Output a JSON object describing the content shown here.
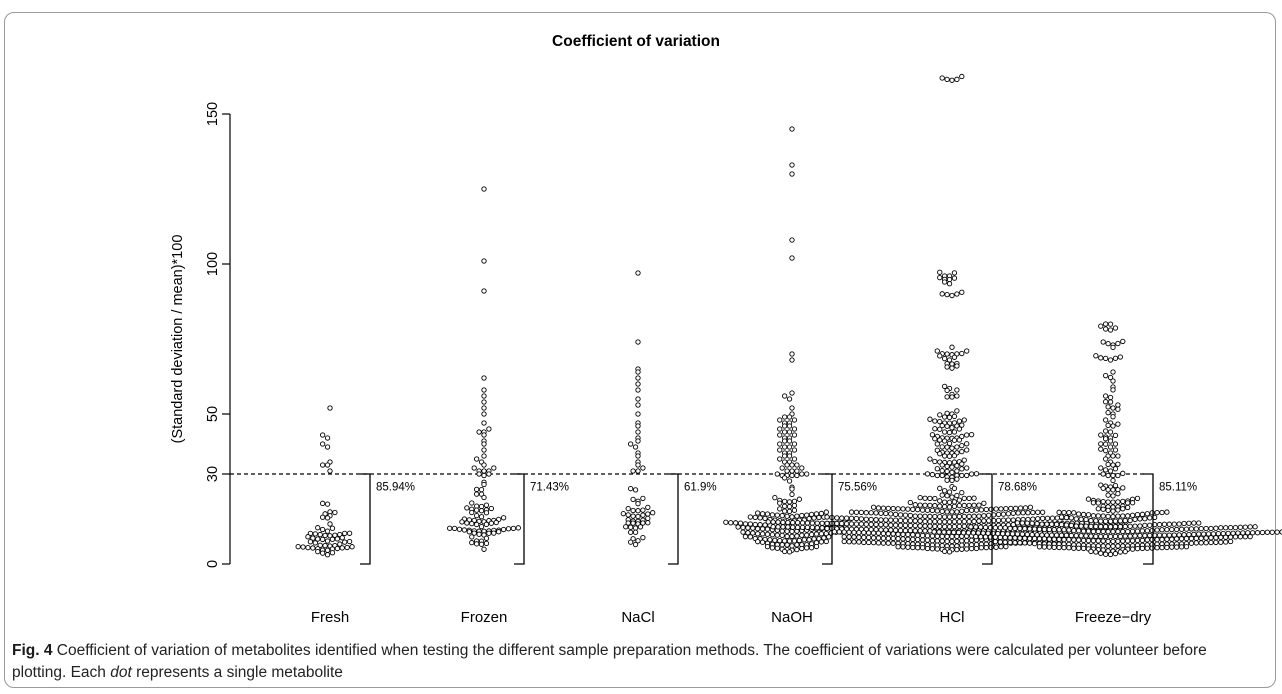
{
  "chart_data": {
    "type": "scatter",
    "title": "Coefficient of variation",
    "ylabel": "(Standard deviation / mean)*100",
    "xlabel": "",
    "ylim": [
      0,
      160
    ],
    "yticks": [
      0,
      30,
      50,
      100,
      150
    ],
    "threshold": 30,
    "categories": [
      "Fresh",
      "Frozen",
      "NaCl",
      "NaOH",
      "HCl",
      "Freeze−dry"
    ],
    "percent_labels": [
      "85.94%",
      "71.43%",
      "61.9%",
      "75.56%",
      "78.68%",
      "85.11%"
    ],
    "series": [
      {
        "category": "Fresh",
        "n": 64,
        "outliers": [
          52,
          43,
          42,
          40,
          39,
          34,
          33,
          33,
          31
        ]
      },
      {
        "category": "Frozen",
        "n": 98,
        "outliers": [
          125,
          101,
          91,
          62,
          58,
          56,
          54,
          52,
          50,
          47,
          45,
          44,
          44,
          43,
          41,
          40,
          38,
          36,
          35,
          34,
          33,
          32,
          31,
          31,
          30,
          30,
          31,
          32
        ]
      },
      {
        "category": "NaCl",
        "n": 63,
        "outliers": [
          97,
          74,
          65,
          64,
          62,
          60,
          58,
          55,
          53,
          50,
          47,
          46,
          44,
          42,
          41,
          40,
          39,
          37,
          36,
          34,
          33,
          32,
          31,
          31
        ]
      },
      {
        "category": "NaOH",
        "n": 225,
        "outliers": [
          145,
          133,
          130,
          108,
          102,
          70,
          68,
          57,
          56,
          55,
          52,
          50,
          49,
          48,
          47,
          46,
          45,
          44,
          43,
          42,
          41,
          40,
          39,
          38,
          37,
          36,
          35,
          34,
          33,
          32,
          32,
          31,
          31,
          30,
          30,
          30,
          31,
          33,
          35,
          37,
          39,
          41,
          43,
          45,
          47,
          49,
          36,
          38,
          40,
          42,
          44,
          46,
          48,
          34,
          33,
          32
        ]
      },
      {
        "category": "HCl",
        "n": 610,
        "outliers": [
          162,
          96,
          94,
          90,
          71,
          70,
          68,
          66,
          58,
          56,
          50,
          49,
          48,
          47,
          46,
          45,
          44,
          43,
          42,
          41,
          40,
          39,
          38,
          37,
          36,
          35,
          34,
          33,
          32,
          31,
          30
        ]
      },
      {
        "category": "Freeze−dry",
        "n": 470,
        "outliers": [
          80,
          78,
          74,
          73,
          69,
          68,
          64,
          61,
          59,
          56,
          54,
          53,
          52,
          50,
          48,
          47,
          46,
          44,
          43,
          42,
          41,
          40,
          39,
          38,
          37,
          36,
          35,
          34,
          33,
          32,
          31,
          30
        ]
      }
    ]
  },
  "caption": {
    "fig_label": "Fig. 4",
    "text_before_em": " Coefficient of variation of metabolites identified when testing the different sample preparation methods. The coefficient of variations were calculated per volunteer before plotting. Each ",
    "em": "dot",
    "text_after_em": " represents a single metabolite"
  }
}
